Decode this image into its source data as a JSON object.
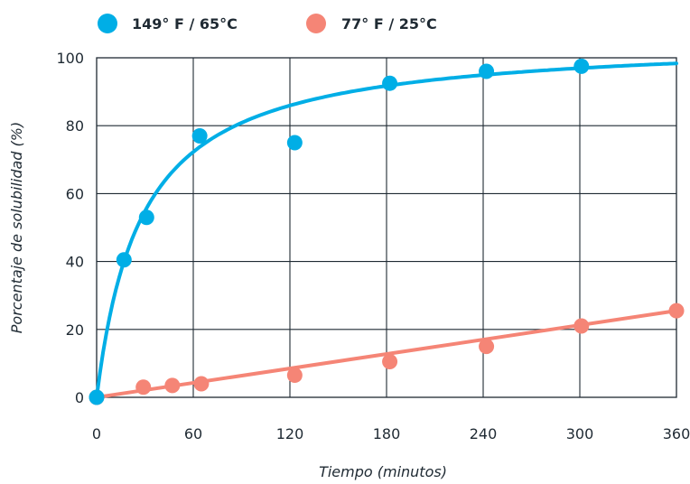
{
  "chart_data": {
    "type": "scatter",
    "xlabel": "Tiempo (minutos)",
    "ylabel": "Porcentaje de solubilidad (%)",
    "xlim": [
      0,
      360
    ],
    "ylim": [
      0,
      100
    ],
    "xticks": [
      "0",
      "60",
      "120",
      "180",
      "240",
      "300",
      "360"
    ],
    "yticks": [
      "0",
      "20",
      "40",
      "60",
      "80",
      "100"
    ],
    "grid": true,
    "legend_position": "top-left",
    "series": [
      {
        "name": "149° F / 65°C",
        "color": "#00aee6",
        "points": [
          [
            0,
            0
          ],
          [
            17,
            40.5
          ],
          [
            31,
            53
          ],
          [
            64,
            77
          ],
          [
            123,
            75
          ],
          [
            182,
            92.5
          ],
          [
            242,
            96
          ],
          [
            301,
            97.5
          ]
        ],
        "trend": "saturation"
      },
      {
        "name": "77° F / 25°C",
        "color": "#f58576",
        "points": [
          [
            0,
            0
          ],
          [
            29,
            3
          ],
          [
            47,
            3.5
          ],
          [
            65,
            4
          ],
          [
            123,
            6.5
          ],
          [
            182,
            10.5
          ],
          [
            242,
            15
          ],
          [
            301,
            21
          ],
          [
            360,
            25.5
          ]
        ],
        "trend": "linear"
      }
    ]
  }
}
